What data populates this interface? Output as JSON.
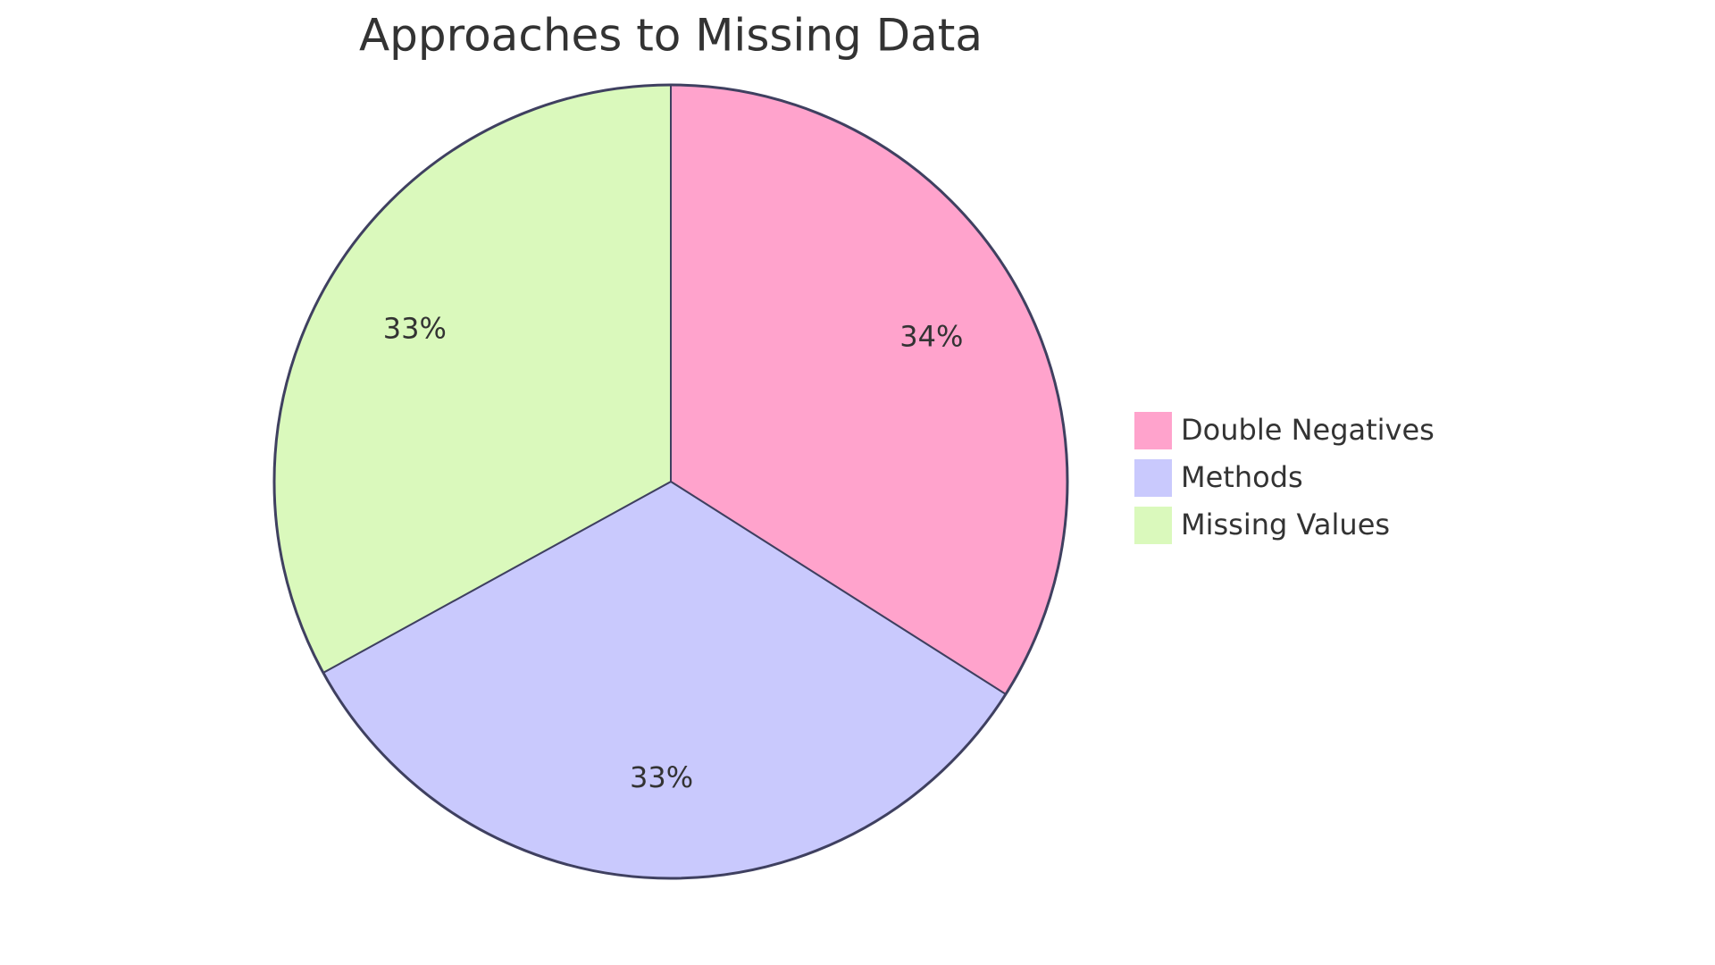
{
  "chart_data": {
    "type": "pie",
    "title": "Approaches to Missing Data",
    "categories": [
      "Double Negatives",
      "Methods",
      "Missing Values"
    ],
    "values": [
      34,
      33,
      33
    ],
    "value_labels": [
      "34%",
      "33%",
      "33%"
    ],
    "colors": [
      "#ffa3cc",
      "#c9c9fd",
      "#daf9bc"
    ],
    "legend": "right"
  }
}
